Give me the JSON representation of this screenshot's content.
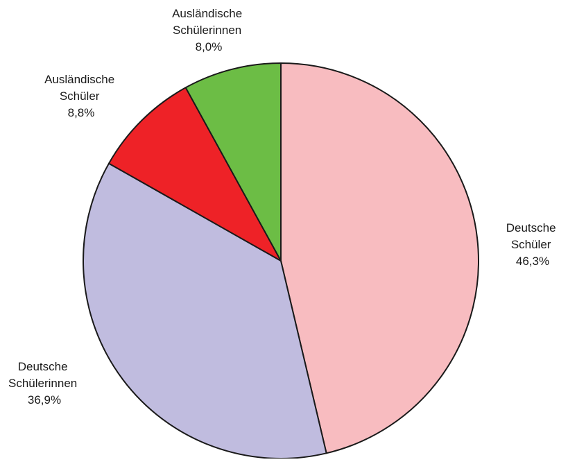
{
  "chart_data": {
    "type": "pie",
    "start_angle_deg": 0,
    "direction": "clockwise",
    "slices": [
      {
        "key": "de_m",
        "line1": "Deutsche",
        "line2": "Schüler",
        "value_label": "46,3%",
        "value": 46.3,
        "color": "#f8bcc0"
      },
      {
        "key": "de_f",
        "line1": "Deutsche",
        "line2": "Schülerinnen",
        "value_label": "36,9%",
        "value": 36.9,
        "color": "#c0bcdf"
      },
      {
        "key": "aus_m",
        "line1": "Ausländische",
        "line2": "Schüler",
        "value_label": "8,8%",
        "value": 8.8,
        "color": "#ee2227"
      },
      {
        "key": "aus_f",
        "line1": "Ausländische",
        "line2": "Schülerinnen",
        "value_label": "8,0%",
        "value": 8.0,
        "color": "#6cbd45"
      }
    ],
    "stroke_color": "#1a1a1a"
  }
}
